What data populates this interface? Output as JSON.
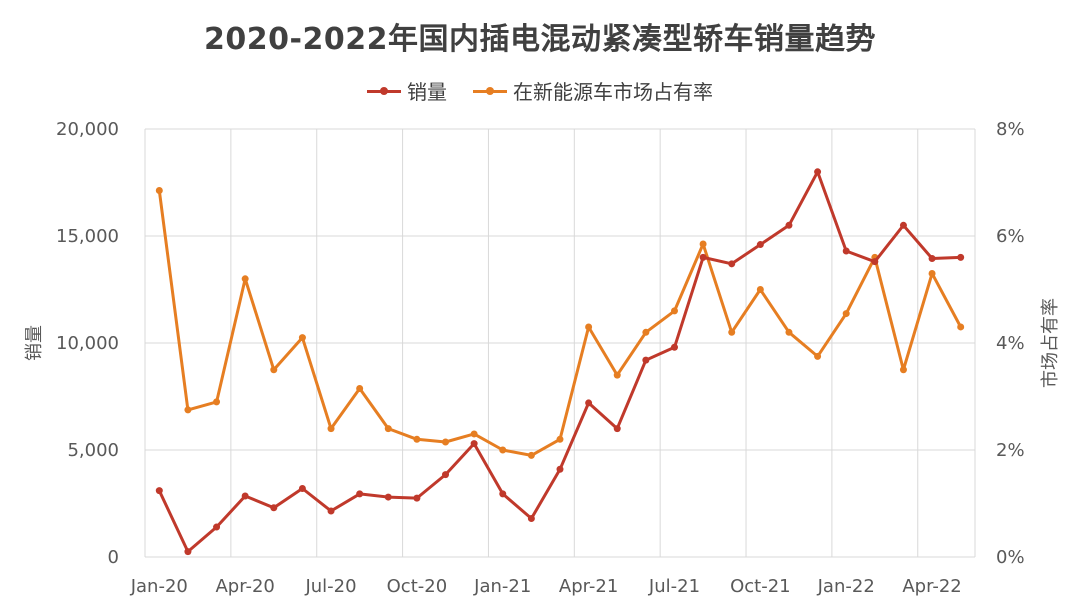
{
  "chart_data": {
    "type": "line",
    "title": "2020-2022年国内插电混动紧凑型轿车销量趋势",
    "ylabel": "销量",
    "y2label": "市场占有率",
    "ylim": [
      0,
      20000
    ],
    "y2lim": [
      0,
      8
    ],
    "yticks": [
      "0",
      "5,000",
      "10,000",
      "15,000",
      "20,000"
    ],
    "y2ticks": [
      "0%",
      "2%",
      "4%",
      "6%",
      "8%"
    ],
    "xticks": [
      "Jan-20",
      "Apr-20",
      "Jul-20",
      "Oct-20",
      "Jan-21",
      "Apr-21",
      "Jul-21",
      "Oct-21",
      "Jan-22",
      "Apr-22"
    ],
    "x": [
      "2020-01",
      "2020-02",
      "2020-03",
      "2020-04",
      "2020-05",
      "2020-06",
      "2020-07",
      "2020-08",
      "2020-09",
      "2020-10",
      "2020-11",
      "2020-12",
      "2021-01",
      "2021-02",
      "2021-03",
      "2021-04",
      "2021-05",
      "2021-06",
      "2021-07",
      "2021-08",
      "2021-09",
      "2021-10",
      "2021-11",
      "2021-12",
      "2022-01",
      "2022-02",
      "2022-03",
      "2022-04",
      "2022-05"
    ],
    "grid": true,
    "legend_position": "top-center",
    "series": [
      {
        "name": "销量",
        "axis": "left",
        "color": "#c0392b",
        "values": [
          3100,
          250,
          1400,
          2850,
          2300,
          3200,
          2150,
          2950,
          2800,
          2750,
          3850,
          5300,
          2950,
          1800,
          4100,
          7200,
          6000,
          9200,
          9800,
          14000,
          13700,
          14600,
          15500,
          18000,
          14300,
          13800,
          15500,
          13950,
          14000
        ]
      },
      {
        "name": "在新能源车市场占有率",
        "axis": "right",
        "color": "#e67e22",
        "values": [
          6.85,
          2.75,
          2.9,
          5.2,
          3.5,
          4.1,
          2.4,
          3.15,
          2.4,
          2.2,
          2.15,
          2.3,
          2.0,
          1.9,
          2.2,
          4.3,
          3.4,
          4.2,
          4.6,
          5.85,
          4.2,
          5.0,
          4.2,
          3.75,
          4.55,
          5.6,
          3.5,
          5.3,
          4.3
        ]
      }
    ]
  }
}
